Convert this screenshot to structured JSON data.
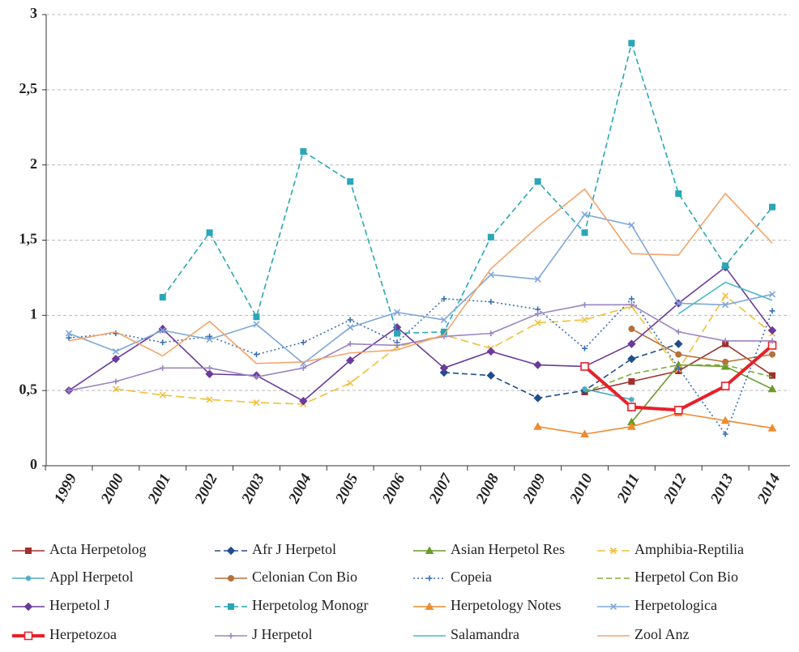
{
  "chart_data": {
    "type": "line",
    "categories": [
      "1999",
      "2000",
      "2001",
      "2002",
      "2003",
      "2004",
      "2005",
      "2006",
      "2007",
      "2008",
      "2009",
      "2010",
      "2011",
      "2012",
      "2013",
      "2014"
    ],
    "ylim": [
      0,
      3
    ],
    "yticks": [
      0,
      {
        "value": 0.5,
        "label": "0,5"
      },
      1,
      {
        "value": 1.5,
        "label": "1,5"
      },
      2,
      {
        "value": 2.5,
        "label": "2,5"
      },
      3
    ],
    "grid": true,
    "legend": "bottom",
    "series": [
      {
        "name": "Acta Herpetolog",
        "color": "#a0302c",
        "dash": "solid",
        "marker": "square",
        "values": [
          null,
          null,
          null,
          null,
          null,
          null,
          null,
          null,
          null,
          null,
          null,
          0.49,
          0.56,
          0.63,
          0.81,
          0.6
        ]
      },
      {
        "name": "Afr J Herpetol",
        "color": "#1f4e8c",
        "dash": "dashed",
        "marker": "diamond",
        "values": [
          null,
          null,
          null,
          null,
          null,
          null,
          null,
          null,
          0.62,
          0.6,
          0.45,
          0.5,
          0.71,
          0.81,
          null,
          null
        ]
      },
      {
        "name": "Asian Herpetol Res",
        "color": "#6a9a2a",
        "dash": "solid",
        "marker": "triangle",
        "values": [
          null,
          null,
          null,
          null,
          null,
          null,
          null,
          null,
          null,
          null,
          null,
          null,
          0.29,
          0.67,
          0.66,
          0.51
        ]
      },
      {
        "name": "Amphibia-Reptilia",
        "color": "#f2bf3a",
        "dash": "longdash",
        "marker": "x",
        "values": [
          null,
          0.51,
          0.47,
          0.44,
          0.42,
          0.41,
          0.55,
          0.79,
          0.87,
          0.78,
          0.95,
          0.97,
          1.06,
          0.64,
          1.13,
          0.88
        ]
      },
      {
        "name": "Appl Herpetol",
        "color": "#4bacc6",
        "dash": "solid",
        "marker": "star",
        "values": [
          null,
          null,
          null,
          null,
          null,
          null,
          null,
          null,
          null,
          null,
          null,
          0.51,
          0.44,
          null,
          null,
          null
        ]
      },
      {
        "name": "Celonian Con Bio",
        "color": "#b5713a",
        "dash": "solid",
        "marker": "circle",
        "values": [
          null,
          null,
          null,
          null,
          null,
          null,
          null,
          null,
          null,
          null,
          null,
          null,
          0.91,
          0.74,
          0.69,
          0.74
        ]
      },
      {
        "name": "Copeia",
        "color": "#3a6fb5",
        "dash": "dotted",
        "marker": "plus",
        "values": [
          0.85,
          0.88,
          0.82,
          0.86,
          0.74,
          0.82,
          0.97,
          0.82,
          1.11,
          1.09,
          1.04,
          0.78,
          1.11,
          0.65,
          0.21,
          1.03
        ]
      },
      {
        "name": "Herpetol Con Bio",
        "color": "#7fae3a",
        "dash": "dashed",
        "marker": "none",
        "values": [
          null,
          null,
          null,
          null,
          null,
          null,
          null,
          null,
          null,
          null,
          null,
          0.49,
          0.61,
          0.67,
          0.67,
          0.59
        ]
      },
      {
        "name": "Herpetol J",
        "color": "#6b3a9a",
        "dash": "solid",
        "marker": "diamond",
        "values": [
          0.5,
          0.71,
          0.91,
          0.61,
          0.6,
          0.43,
          0.7,
          0.92,
          0.65,
          0.76,
          0.67,
          0.66,
          0.81,
          1.08,
          1.32,
          0.9
        ]
      },
      {
        "name": "Herpetolog Monogr",
        "color": "#2aa6b8",
        "dash": "dashed",
        "marker": "square",
        "values": [
          null,
          null,
          1.12,
          1.55,
          0.99,
          2.09,
          1.89,
          0.88,
          0.89,
          1.52,
          1.89,
          1.55,
          2.81,
          1.81,
          1.33,
          1.72
        ]
      },
      {
        "name": "Herpetology Notes",
        "color": "#ef8a2e",
        "dash": "solid",
        "marker": "triangle",
        "values": [
          null,
          null,
          null,
          null,
          null,
          null,
          null,
          null,
          null,
          null,
          0.26,
          0.21,
          0.26,
          0.35,
          0.3,
          0.25
        ]
      },
      {
        "name": "Herpetologica",
        "color": "#7fa8d8",
        "dash": "solid",
        "marker": "x",
        "values": [
          0.88,
          0.76,
          0.9,
          0.84,
          0.94,
          0.68,
          0.92,
          1.02,
          0.97,
          1.27,
          1.24,
          1.67,
          1.6,
          1.08,
          1.07,
          1.14
        ]
      },
      {
        "name": "Herpetozoa",
        "color": "#e8202a",
        "dash": "solid",
        "marker": "square",
        "line_width": 4,
        "values": [
          null,
          null,
          null,
          null,
          null,
          null,
          null,
          null,
          null,
          null,
          null,
          0.66,
          0.39,
          0.37,
          0.53,
          0.8
        ]
      },
      {
        "name": "J Herpetol",
        "color": "#9b85c4",
        "dash": "solid",
        "marker": "plus",
        "values": [
          0.5,
          0.56,
          0.65,
          0.65,
          0.59,
          0.65,
          0.81,
          0.8,
          0.86,
          0.88,
          1.01,
          1.07,
          1.07,
          0.89,
          0.83,
          0.83
        ]
      },
      {
        "name": "Salamandra",
        "color": "#4bb8c8",
        "dash": "solid",
        "marker": "none",
        "values": [
          null,
          null,
          null,
          null,
          null,
          null,
          null,
          null,
          null,
          null,
          null,
          null,
          null,
          1.01,
          1.22,
          1.1
        ]
      },
      {
        "name": "Zool Anz",
        "color": "#f4a46a",
        "dash": "solid",
        "marker": "none",
        "values": [
          0.83,
          0.89,
          0.73,
          0.96,
          0.68,
          0.69,
          0.75,
          0.77,
          0.87,
          1.31,
          1.59,
          1.84,
          1.41,
          1.4,
          1.81,
          1.48
        ]
      }
    ]
  }
}
